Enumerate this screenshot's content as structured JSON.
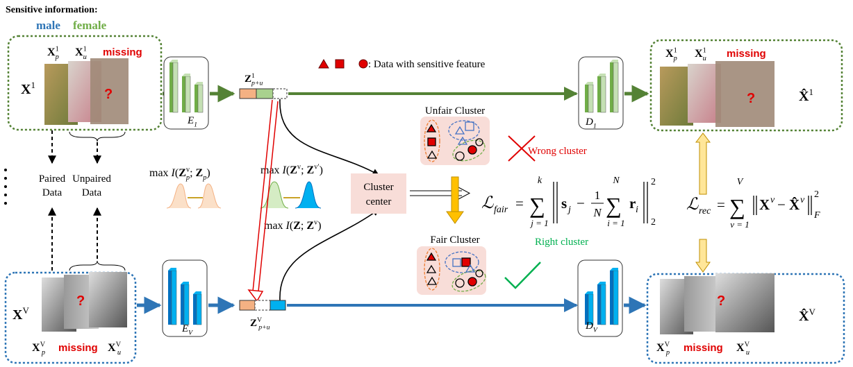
{
  "header": {
    "title": "Sensitive information:",
    "male": "male",
    "female": "female"
  },
  "view1": {
    "label": [
      {
        "base": "X",
        "style": "bold",
        "sup": "1"
      }
    ],
    "paired": [
      {
        "base": "X",
        "style": "bold",
        "sup": "1",
        "sub": "p"
      }
    ],
    "unpaired": [
      {
        "base": "X",
        "style": "bold",
        "sup": "1",
        "sub": "u"
      }
    ],
    "missing": "missing",
    "question": "?"
  },
  "viewV": {
    "label": [
      {
        "base": "X",
        "style": "bold",
        "sup": "V"
      }
    ],
    "paired": [
      {
        "base": "X",
        "style": "bold",
        "sup": "V",
        "sub": "p"
      }
    ],
    "unpaired": [
      {
        "base": "X",
        "style": "bold",
        "sup": "V",
        "sub": "u"
      }
    ],
    "missing": "missing",
    "question": "?"
  },
  "recon1": {
    "label": [
      {
        "base": "X̂",
        "style": "bold",
        "sup": "1"
      }
    ],
    "paired": [
      {
        "base": "X",
        "style": "bold",
        "sup": "1",
        "sub": "p"
      }
    ],
    "unpaired": [
      {
        "base": "X",
        "style": "bold",
        "sup": "1",
        "sub": "u"
      }
    ],
    "missing": "missing",
    "question": "?"
  },
  "reconV": {
    "label": [
      {
        "base": "X̂",
        "style": "bold",
        "sup": "V"
      }
    ],
    "paired": [
      {
        "base": "X",
        "style": "bold",
        "sup": "V",
        "sub": "p"
      }
    ],
    "unpaired": [
      {
        "base": "X",
        "style": "bold",
        "sup": "V",
        "sub": "u"
      }
    ],
    "missing": "missing",
    "question": "?"
  },
  "encoders": [
    [
      {
        "base": "E",
        "style": "italic",
        "sub": "1"
      }
    ],
    [
      {
        "base": "E",
        "style": "italic",
        "sub": "V"
      }
    ]
  ],
  "decoders": [
    [
      {
        "base": "D",
        "style": "italic",
        "sub": "1"
      }
    ],
    [
      {
        "base": "D",
        "style": "italic",
        "sub": "V"
      }
    ]
  ],
  "latents": [
    [
      {
        "base": "Z",
        "style": "bold",
        "sup": "1",
        "sub": "p+u"
      }
    ],
    [
      {
        "base": "Z",
        "style": "bold",
        "sup": "V",
        "sub": "p+u"
      }
    ]
  ],
  "legend": ": Data with sensitive feature",
  "left": {
    "paired": [
      "Paired",
      "Data"
    ],
    "unpaired": [
      "Unpaired",
      "Data"
    ]
  },
  "mutual_info": {
    "pair": [
      {
        "base": "max "
      },
      {
        "base": "I",
        "style": "italic"
      },
      {
        "base": "("
      },
      {
        "base": "Z",
        "style": "bold",
        "sup": "v",
        "sub": "p"
      },
      {
        "base": "; "
      },
      {
        "base": "Z",
        "style": "bold",
        "sub": "p"
      },
      {
        "base": ")"
      }
    ],
    "views": [
      {
        "base": "max "
      },
      {
        "base": "I",
        "style": "italic"
      },
      {
        "base": "("
      },
      {
        "base": "Z",
        "style": "bold",
        "sup": "v"
      },
      {
        "base": "; "
      },
      {
        "base": "Z",
        "style": "bold",
        "sup": "v′"
      },
      {
        "base": ")"
      }
    ],
    "common": [
      {
        "base": "max "
      },
      {
        "base": "I",
        "style": "italic"
      },
      {
        "base": "("
      },
      {
        "base": "Z",
        "style": "bold"
      },
      {
        "base": "; "
      },
      {
        "base": "Z",
        "style": "bold",
        "sup": "v"
      },
      {
        "base": ")"
      }
    ]
  },
  "clusters": {
    "unfair": "Unfair Cluster",
    "wrong": "Wrong cluster",
    "fair": "Fair Cluster",
    "right": "Right cluster",
    "center": [
      "Cluster",
      "center"
    ]
  },
  "loss_fair": {
    "lhs": "ℒ",
    "lhs_sub": "fair",
    "eq": "=",
    "sum1": "∑",
    "sum1_hi": "k",
    "sum1_lo": "j = 1",
    "s": "s",
    "s_sub": "j",
    "minus": "−",
    "num": "1",
    "den": "N",
    "sum2": "∑",
    "sum2_hi": "N",
    "sum2_lo": "i = 1",
    "r": "r",
    "r_sub": "i",
    "sup": "2",
    "sub": "2"
  },
  "loss_rec": {
    "lhs": "ℒ",
    "lhs_sub": "rec",
    "eq": "=",
    "sum": "∑",
    "sum_hi": "V",
    "sum_lo": "v = 1",
    "x": "X",
    "x_sup": "v",
    "minus": "−",
    "xhat": "X̂",
    "xhat_sup": "v",
    "sup": "2",
    "sub": "F"
  }
}
